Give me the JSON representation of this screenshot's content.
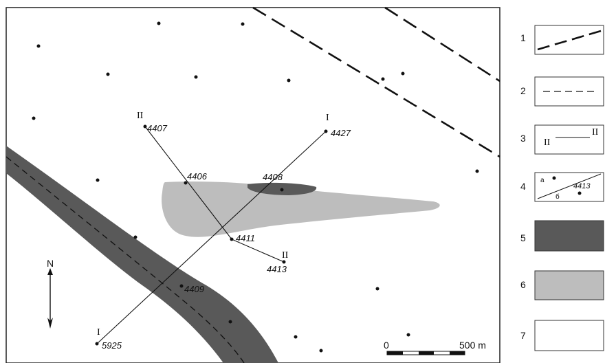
{
  "map": {
    "north_label": "N",
    "scale": {
      "start": "0",
      "end": "500 m"
    },
    "profile_I": {
      "label_start": "I",
      "label_end": "I"
    },
    "profile_II": {
      "label_start": "II",
      "label_end": "II"
    },
    "wells": [
      {
        "id": "4407"
      },
      {
        "id": "4427"
      },
      {
        "id": "4406"
      },
      {
        "id": "4408"
      },
      {
        "id": "4411"
      },
      {
        "id": "4413"
      },
      {
        "id": "4409"
      },
      {
        "id": "5925"
      }
    ]
  },
  "legend": {
    "items": [
      {
        "num": "1"
      },
      {
        "num": "2"
      },
      {
        "num": "3",
        "label_left": "II",
        "label_right": "II"
      },
      {
        "num": "4",
        "label_a": "а",
        "label_b": "б",
        "label_well": "4413"
      },
      {
        "num": "5",
        "color": "#595959"
      },
      {
        "num": "6",
        "color": "#bdbdbd"
      },
      {
        "num": "7",
        "color": "#ffffff"
      }
    ]
  },
  "colors": {
    "dark_body": "#595959",
    "light_body": "#bdbdbd",
    "line": "#111111"
  }
}
